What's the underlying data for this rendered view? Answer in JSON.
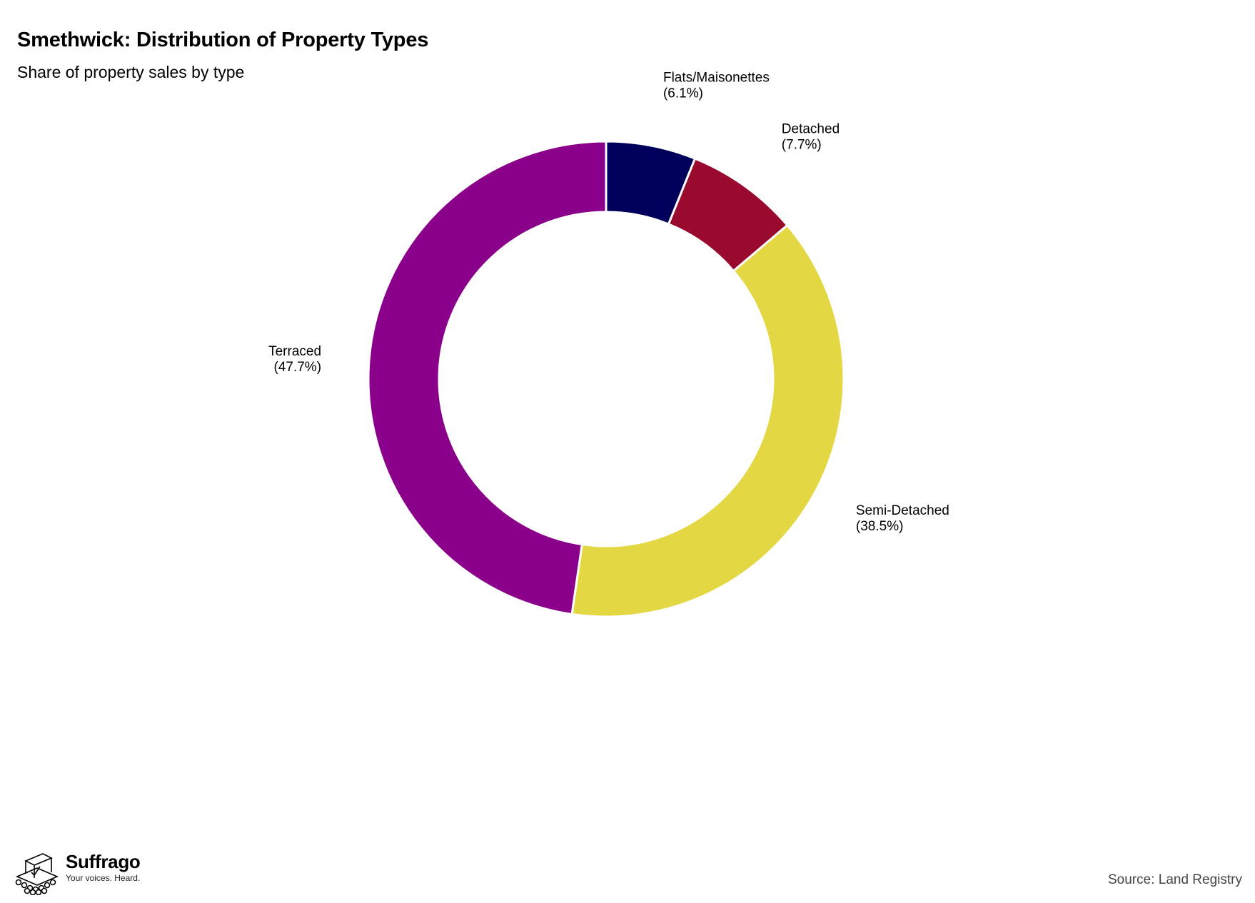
{
  "title": "Smethwick: Distribution of Property Types",
  "subtitle": "Share of property sales by type",
  "chart_data": {
    "type": "pie",
    "donut": true,
    "slices": [
      {
        "label": "Flats/Maisonettes",
        "value": 6.1,
        "value_label": "(6.1%)",
        "color": "#00005c"
      },
      {
        "label": "Detached",
        "value": 7.7,
        "value_label": "(7.7%)",
        "color": "#990a2e"
      },
      {
        "label": "Semi-Detached",
        "value": 38.5,
        "value_label": "(38.5%)",
        "color": "#e3d843"
      },
      {
        "label": "Terraced",
        "value": 47.7,
        "value_label": "(47.7%)",
        "color": "#8b008b"
      }
    ],
    "start": "top",
    "direction": "clockwise"
  },
  "branding": {
    "name": "Suffrago",
    "tagline": "Your voices. Heard."
  },
  "source": "Source: Land Registry"
}
